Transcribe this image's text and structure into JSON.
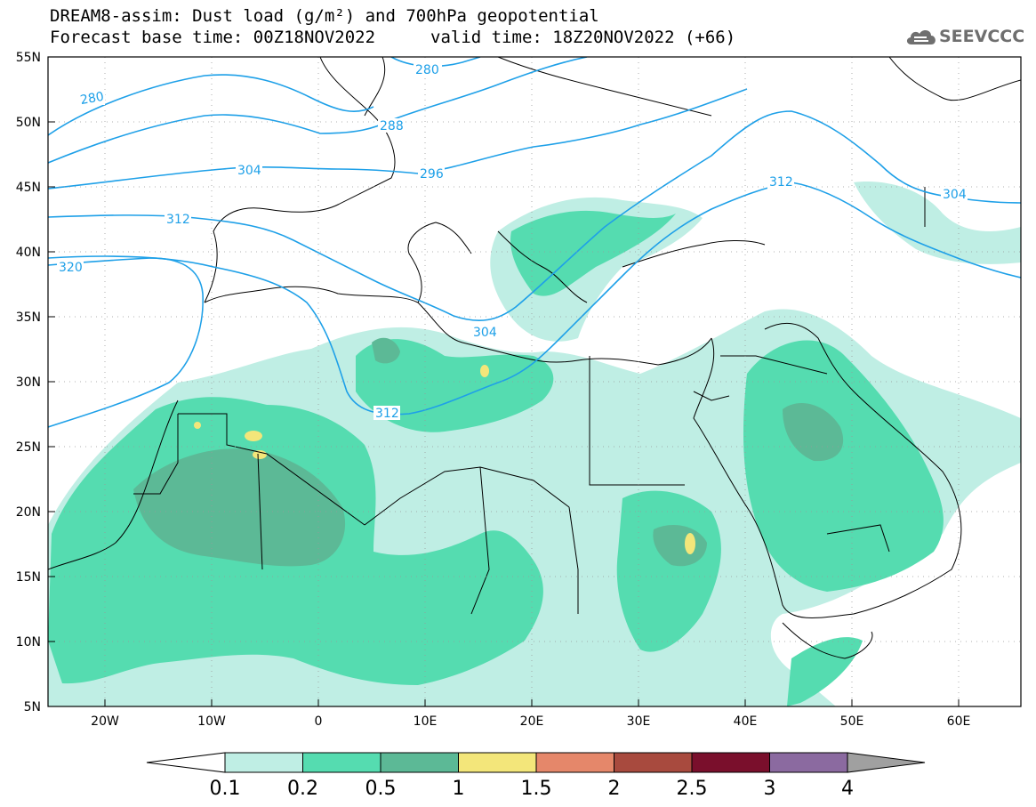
{
  "header": {
    "title_line1": "DREAM8-assim: Dust load (g/m²) and 700hPa geopotential",
    "title_line2": "Forecast base time: 00Z18NOV2022",
    "valid_time": "valid time: 18Z20NOV2022 (+66)"
  },
  "logo": {
    "text": "SEEVCCC",
    "icon": "cloud-icon"
  },
  "map": {
    "lat_labels": [
      "55N",
      "50N",
      "45N",
      "40N",
      "35N",
      "30N",
      "25N",
      "20N",
      "15N",
      "10N",
      "5N"
    ],
    "lon_labels": [
      "20W",
      "10W",
      "0",
      "10E",
      "20E",
      "30E",
      "40E",
      "50E",
      "60E"
    ],
    "contour_labels": [
      "280",
      "280",
      "288",
      "296",
      "304",
      "304",
      "304",
      "312",
      "312",
      "312",
      "320"
    ],
    "contour_color": "#1ea0e8"
  },
  "colorbar": {
    "labels": [
      "0.1",
      "0.2",
      "0.5",
      "1",
      "1.5",
      "2",
      "2.5",
      "3",
      "4"
    ],
    "colors": [
      "#ffffff",
      "#bfeee4",
      "#55dcb0",
      "#5cb996",
      "#f3e67a",
      "#e5876a",
      "#a84a3e",
      "#7a0f2c",
      "#8b6aa0",
      "#a0a0a0"
    ]
  }
}
